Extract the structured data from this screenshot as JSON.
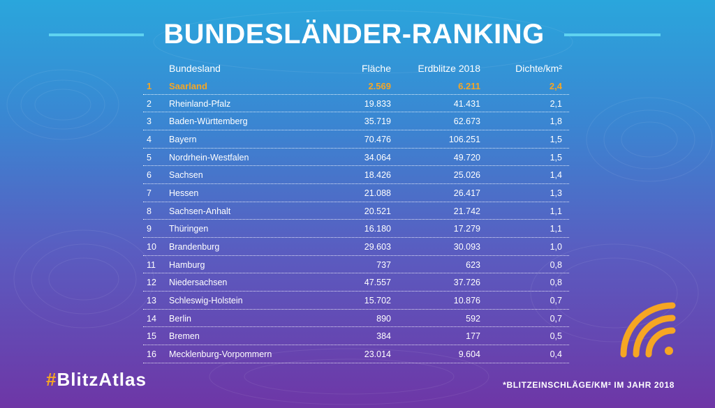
{
  "header": {
    "title": "BUNDESLÄNDER-RANKING"
  },
  "table": {
    "columns": {
      "name": "Bundesland",
      "area": "Fläche",
      "strikes": "Erdblitze 2018",
      "density": "Dichte/km²"
    },
    "rows": [
      {
        "rank": "1",
        "name": "Saarland",
        "area": "2.569",
        "strikes": "6.211",
        "density": "2,4"
      },
      {
        "rank": "2",
        "name": "Rheinland-Pfalz",
        "area": "19.833",
        "strikes": "41.431",
        "density": "2,1"
      },
      {
        "rank": "3",
        "name": "Baden-Württemberg",
        "area": "35.719",
        "strikes": "62.673",
        "density": "1,8"
      },
      {
        "rank": "4",
        "name": "Bayern",
        "area": "70.476",
        "strikes": "106.251",
        "density": "1,5"
      },
      {
        "rank": "5",
        "name": "Nordrhein-Westfalen",
        "area": "34.064",
        "strikes": "49.720",
        "density": "1,5"
      },
      {
        "rank": "6",
        "name": "Sachsen",
        "area": "18.426",
        "strikes": "25.026",
        "density": "1,4"
      },
      {
        "rank": "7",
        "name": "Hessen",
        "area": "21.088",
        "strikes": "26.417",
        "density": "1,3"
      },
      {
        "rank": "8",
        "name": "Sachsen-Anhalt",
        "area": "20.521",
        "strikes": "21.742",
        "density": "1,1"
      },
      {
        "rank": "9",
        "name": "Thüringen",
        "area": "16.180",
        "strikes": "17.279",
        "density": "1,1"
      },
      {
        "rank": "10",
        "name": "Brandenburg",
        "area": "29.603",
        "strikes": "30.093",
        "density": "1,0"
      },
      {
        "rank": "11",
        "name": "Hamburg",
        "area": "737",
        "strikes": "623",
        "density": "0,8"
      },
      {
        "rank": "12",
        "name": "Niedersachsen",
        "area": "47.557",
        "strikes": "37.726",
        "density": "0,8"
      },
      {
        "rank": "13",
        "name": "Schleswig-Holstein",
        "area": "15.702",
        "strikes": "10.876",
        "density": "0,7"
      },
      {
        "rank": "14",
        "name": "Berlin",
        "area": "890",
        "strikes": "592",
        "density": "0,7"
      },
      {
        "rank": "15",
        "name": "Bremen",
        "area": "384",
        "strikes": "177",
        "density": "0,5"
      },
      {
        "rank": "16",
        "name": "Mecklenburg-Vorpommern",
        "area": "23.014",
        "strikes": "9.604",
        "density": "0,4"
      }
    ]
  },
  "chart_data": {
    "type": "table",
    "title": "BUNDESLÄNDER-RANKING",
    "columns": [
      "Bundesland",
      "Fläche",
      "Erdblitze 2018",
      "Dichte/km²"
    ],
    "highlight_row": "Saarland"
  },
  "brand": {
    "hash": "#",
    "name": "BlitzAtlas"
  },
  "footnote": "*BLITZEINSCHLÄGE/KM² IM JAHR 2018",
  "icons": {
    "signal": "signal-icon"
  },
  "colors": {
    "accent": "#f6a623",
    "title_line": "#5fd3f0",
    "text": "#ffffff"
  }
}
